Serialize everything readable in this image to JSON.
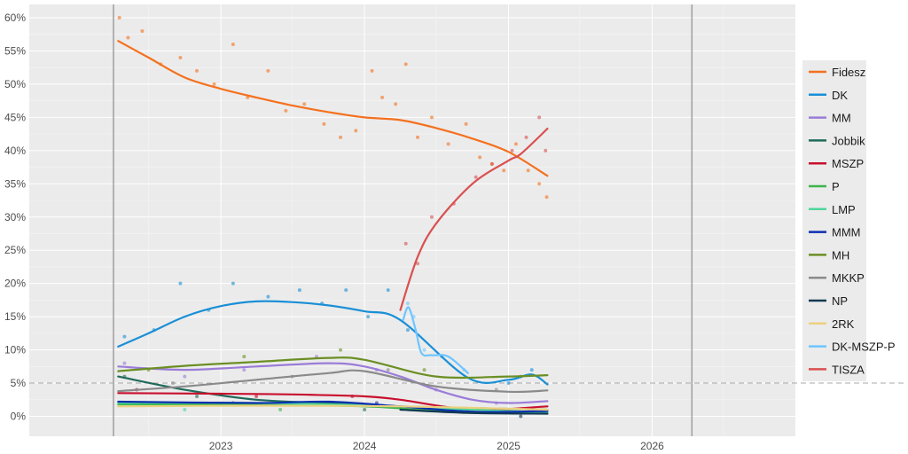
{
  "chart_data": {
    "type": "scatter",
    "x_axis": {
      "ticks": [
        "2023",
        "2024",
        "2025",
        "2026"
      ],
      "range": [
        "2021-09-01",
        "2026-12-31"
      ]
    },
    "y_axis": {
      "ticks": [
        "0%",
        "5%",
        "10%",
        "15%",
        "20%",
        "25%",
        "30%",
        "35%",
        "40%",
        "45%",
        "50%",
        "55%",
        "60%"
      ],
      "range": [
        -3,
        62
      ]
    },
    "threshold": 5,
    "vertical_lines": [
      "2022-04-03",
      "2026-04-12"
    ],
    "grid": true,
    "legend_position": "right",
    "series": [
      {
        "name": "Fidesz",
        "color": "#f4711f",
        "trend": [
          [
            "2022-04-15",
            56.5
          ],
          [
            "2022-07-01",
            54
          ],
          [
            "2022-10-01",
            51
          ],
          [
            "2023-01-01",
            49.3
          ],
          [
            "2023-04-01",
            48
          ],
          [
            "2023-07-01",
            46.8
          ],
          [
            "2023-10-01",
            45.8
          ],
          [
            "2024-01-01",
            45
          ],
          [
            "2024-04-01",
            44.6
          ],
          [
            "2024-07-01",
            43.4
          ],
          [
            "2024-10-01",
            41.8
          ],
          [
            "2025-01-01",
            39.8
          ],
          [
            "2025-04-10",
            36.2
          ]
        ],
        "points": [
          [
            "2022-04-18",
            60
          ],
          [
            "2022-05-10",
            57
          ],
          [
            "2022-06-15",
            58
          ],
          [
            "2022-08-01",
            53
          ],
          [
            "2022-09-20",
            54
          ],
          [
            "2022-11-01",
            52
          ],
          [
            "2022-12-15",
            50
          ],
          [
            "2023-02-01",
            56
          ],
          [
            "2023-03-10",
            48
          ],
          [
            "2023-05-01",
            52
          ],
          [
            "2023-06-15",
            46
          ],
          [
            "2023-08-01",
            47
          ],
          [
            "2023-09-20",
            44
          ],
          [
            "2023-11-01",
            42
          ],
          [
            "2023-12-10",
            43
          ],
          [
            "2024-01-20",
            52
          ],
          [
            "2024-02-15",
            48
          ],
          [
            "2024-03-20",
            47
          ],
          [
            "2024-04-15",
            53
          ],
          [
            "2024-05-15",
            42
          ],
          [
            "2024-06-20",
            45
          ],
          [
            "2024-08-01",
            41
          ],
          [
            "2024-09-15",
            44
          ],
          [
            "2024-10-20",
            39
          ],
          [
            "2024-11-20",
            38
          ],
          [
            "2024-12-20",
            37
          ],
          [
            "2025-01-20",
            41
          ],
          [
            "2025-02-20",
            37
          ],
          [
            "2025-03-20",
            35
          ],
          [
            "2025-04-08",
            33
          ]
        ]
      },
      {
        "name": "DK",
        "color": "#1a8fd6",
        "trend": [
          [
            "2022-04-15",
            10.5
          ],
          [
            "2022-07-01",
            12.5
          ],
          [
            "2022-10-01",
            15
          ],
          [
            "2023-01-01",
            16.6
          ],
          [
            "2023-04-01",
            17.3
          ],
          [
            "2023-07-01",
            17.2
          ],
          [
            "2023-10-01",
            16.7
          ],
          [
            "2024-01-01",
            15.8
          ],
          [
            "2024-04-01",
            14.5
          ],
          [
            "2024-09-20",
            5.8
          ],
          [
            "2025-01-01",
            5.5
          ],
          [
            "2025-03-01",
            6.3
          ],
          [
            "2025-04-10",
            4.8
          ]
        ],
        "points": [
          [
            "2022-05-01",
            12
          ],
          [
            "2022-07-15",
            13
          ],
          [
            "2022-09-20",
            20
          ],
          [
            "2022-12-01",
            16
          ],
          [
            "2023-02-01",
            20
          ],
          [
            "2023-05-01",
            18
          ],
          [
            "2023-07-20",
            19
          ],
          [
            "2023-09-15",
            17
          ],
          [
            "2023-11-15",
            19
          ],
          [
            "2024-01-10",
            15
          ],
          [
            "2024-03-01",
            19
          ],
          [
            "2024-04-20",
            13
          ],
          [
            "2025-01-01",
            5
          ],
          [
            "2025-03-01",
            7
          ]
        ]
      },
      {
        "name": "MM",
        "color": "#9b7cd8",
        "trend": [
          [
            "2022-04-15",
            7.5
          ],
          [
            "2022-10-01",
            7
          ],
          [
            "2023-04-01",
            7.5
          ],
          [
            "2023-10-01",
            8
          ],
          [
            "2024-01-01",
            7.5
          ],
          [
            "2024-04-01",
            6
          ],
          [
            "2024-07-01",
            4
          ],
          [
            "2024-10-01",
            2.5
          ],
          [
            "2025-01-01",
            2
          ],
          [
            "2025-04-10",
            2.3
          ]
        ],
        "points": [
          [
            "2022-05-01",
            8
          ],
          [
            "2022-10-01",
            6
          ],
          [
            "2023-03-01",
            7
          ],
          [
            "2023-09-01",
            9
          ],
          [
            "2024-02-01",
            7
          ],
          [
            "2024-07-01",
            4
          ],
          [
            "2024-12-01",
            2
          ]
        ]
      },
      {
        "name": "Jobbik",
        "color": "#1f6b5a",
        "trend": [
          [
            "2022-04-15",
            6
          ],
          [
            "2022-10-01",
            4
          ],
          [
            "2023-04-01",
            2.5
          ],
          [
            "2023-10-01",
            2
          ],
          [
            "2024-04-01",
            1.5
          ],
          [
            "2025-04-10",
            1
          ]
        ],
        "points": [
          [
            "2022-05-01",
            6
          ],
          [
            "2022-11-01",
            3
          ],
          [
            "2023-06-01",
            2
          ],
          [
            "2024-01-01",
            1
          ]
        ]
      },
      {
        "name": "MSZP",
        "color": "#c8102e",
        "trend": [
          [
            "2022-04-15",
            3.5
          ],
          [
            "2023-01-01",
            3.4
          ],
          [
            "2023-07-01",
            3.3
          ],
          [
            "2024-01-01",
            3
          ],
          [
            "2024-04-01",
            2.5
          ],
          [
            "2024-10-01",
            1
          ],
          [
            "2025-04-10",
            1.5
          ]
        ],
        "points": [
          [
            "2022-06-01",
            4
          ],
          [
            "2023-04-01",
            3
          ],
          [
            "2023-12-01",
            3
          ],
          [
            "2024-10-01",
            1
          ]
        ]
      },
      {
        "name": "P",
        "color": "#3cb44b",
        "trend": [
          [
            "2022-04-15",
            1.8
          ],
          [
            "2023-01-01",
            1.8
          ],
          [
            "2024-01-01",
            1.5
          ],
          [
            "2024-09-01",
            0.6
          ],
          [
            "2025-04-10",
            0.5
          ]
        ],
        "points": [
          [
            "2022-08-01",
            2
          ],
          [
            "2023-06-01",
            1
          ],
          [
            "2024-09-01",
            1
          ]
        ]
      },
      {
        "name": "LMP",
        "color": "#4fd69c",
        "trend": [
          [
            "2022-04-15",
            2
          ],
          [
            "2023-04-01",
            2
          ],
          [
            "2024-04-01",
            1.5
          ],
          [
            "2024-10-01",
            1
          ],
          [
            "2025-04-10",
            0.6
          ]
        ],
        "points": [
          [
            "2022-10-01",
            1
          ],
          [
            "2023-08-01",
            2
          ],
          [
            "2025-01-01",
            1
          ]
        ]
      },
      {
        "name": "MMM",
        "color": "#0d2fb0",
        "trend": [
          [
            "2022-04-15",
            2.2
          ],
          [
            "2023-04-01",
            2
          ],
          [
            "2023-10-01",
            2.2
          ],
          [
            "2024-04-01",
            1.5
          ],
          [
            "2024-10-01",
            0.7
          ],
          [
            "2025-04-10",
            0.8
          ]
        ],
        "points": [
          [
            "2023-02-01",
            2
          ],
          [
            "2024-02-01",
            2
          ]
        ]
      },
      {
        "name": "MH",
        "color": "#6b8f23",
        "trend": [
          [
            "2022-04-15",
            6.8
          ],
          [
            "2022-10-01",
            7.6
          ],
          [
            "2023-04-01",
            8.2
          ],
          [
            "2023-10-01",
            8.8
          ],
          [
            "2024-01-01",
            8.5
          ],
          [
            "2024-07-01",
            6
          ],
          [
            "2025-01-01",
            6
          ],
          [
            "2025-04-10",
            6.2
          ]
        ],
        "points": [
          [
            "2022-07-01",
            7
          ],
          [
            "2023-03-01",
            9
          ],
          [
            "2023-11-01",
            10
          ],
          [
            "2024-06-01",
            7
          ],
          [
            "2025-02-01",
            6
          ]
        ]
      },
      {
        "name": "MKKP",
        "color": "#8a8a8a",
        "trend": [
          [
            "2022-04-15",
            3.8
          ],
          [
            "2022-10-01",
            4.5
          ],
          [
            "2023-04-01",
            5.5
          ],
          [
            "2023-10-01",
            6.5
          ],
          [
            "2024-01-01",
            6.8
          ],
          [
            "2024-07-01",
            4.5
          ],
          [
            "2025-01-01",
            3.7
          ],
          [
            "2025-04-10",
            3.9
          ]
        ],
        "points": [
          [
            "2022-09-01",
            5
          ],
          [
            "2023-07-01",
            6
          ],
          [
            "2024-03-01",
            7
          ],
          [
            "2024-12-01",
            4
          ]
        ]
      },
      {
        "name": "NP",
        "color": "#123a52",
        "trend": [
          [
            "2024-04-01",
            1
          ],
          [
            "2024-10-01",
            0.5
          ],
          [
            "2025-04-10",
            0.4
          ]
        ],
        "points": [
          [
            "2024-08-01",
            1
          ],
          [
            "2025-02-01",
            0
          ]
        ]
      },
      {
        "name": "2RK",
        "color": "#ecd07f",
        "trend": [
          [
            "2022-04-15",
            1.5
          ],
          [
            "2023-04-01",
            1.6
          ],
          [
            "2024-04-01",
            1.5
          ],
          [
            "2025-04-10",
            1
          ]
        ],
        "points": [
          [
            "2023-01-01",
            2
          ],
          [
            "2024-05-01",
            1
          ]
        ]
      },
      {
        "name": "DK-MSZP-P",
        "color": "#6ec5ff",
        "trend": [
          [
            "2024-04-08",
            14.5
          ],
          [
            "2024-04-22",
            16.4
          ],
          [
            "2024-05-10",
            13
          ],
          [
            "2024-05-25",
            9.5
          ],
          [
            "2024-06-20",
            9.2
          ],
          [
            "2024-08-01",
            9
          ],
          [
            "2024-09-20",
            6.5
          ]
        ],
        "points": [
          [
            "2024-04-20",
            17
          ],
          [
            "2024-05-05",
            15
          ],
          [
            "2024-06-01",
            10
          ],
          [
            "2024-07-15",
            9
          ],
          [
            "2024-09-10",
            7
          ]
        ]
      },
      {
        "name": "TISZA",
        "color": "#d95050",
        "trend": [
          [
            "2024-04-01",
            16
          ],
          [
            "2024-05-15",
            24
          ],
          [
            "2024-07-01",
            29
          ],
          [
            "2024-10-01",
            35
          ],
          [
            "2025-01-01",
            38.5
          ],
          [
            "2025-02-01",
            39.5
          ],
          [
            "2025-04-10",
            43.3
          ]
        ],
        "points": [
          [
            "2024-04-15",
            26
          ],
          [
            "2024-05-15",
            23
          ],
          [
            "2024-06-20",
            30
          ],
          [
            "2024-08-15",
            32
          ],
          [
            "2024-10-10",
            36
          ],
          [
            "2024-11-20",
            38
          ],
          [
            "2025-01-10",
            40
          ],
          [
            "2025-02-15",
            42
          ],
          [
            "2025-03-20",
            45
          ],
          [
            "2025-04-05",
            40
          ]
        ]
      }
    ]
  }
}
